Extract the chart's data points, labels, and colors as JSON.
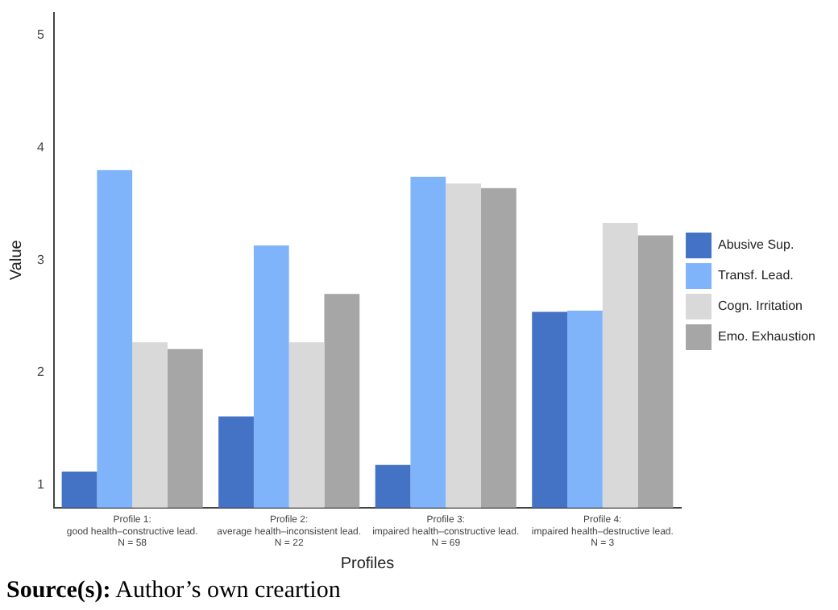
{
  "chart_data": {
    "type": "bar",
    "xlabel": "Profiles",
    "ylabel": "Value",
    "categories": [
      "Profile 1:\ngood health–constructive lead.\nN = 58",
      "Profile 2:\naverage health–inconsistent lead.\nN = 22",
      "Profile 3:\nimpaired health–constructive lead.\nN = 69",
      "Profile 4:\nimpaired health–destructive lead.\nN = 3"
    ],
    "series": [
      {
        "name": "Abusive Sup.",
        "color": "#4472c4",
        "values": [
          1.12,
          1.61,
          1.18,
          2.54
        ]
      },
      {
        "name": "Transf. Lead.",
        "color": "#80b4fa",
        "values": [
          3.8,
          3.13,
          3.74,
          2.55
        ]
      },
      {
        "name": "Cogn. Irritation",
        "color": "#d9d9d9",
        "values": [
          2.27,
          2.27,
          3.68,
          3.33
        ]
      },
      {
        "name": "Emo. Exhaustion",
        "color": "#a6a6a6",
        "values": [
          2.21,
          2.7,
          3.64,
          3.22
        ]
      }
    ],
    "ylim": [
      0.8,
      5.2
    ],
    "yticks": [
      1,
      2,
      3,
      4,
      5
    ],
    "grid": false,
    "legend": "right",
    "annotations": [
      "Source(s): Author’s own creartion"
    ]
  }
}
